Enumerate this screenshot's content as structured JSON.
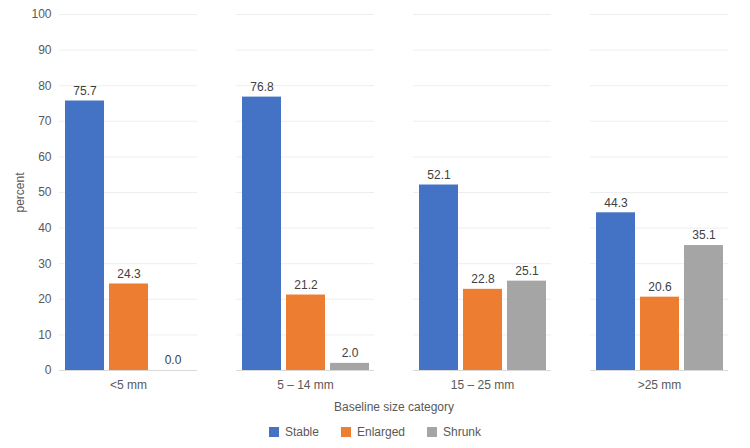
{
  "chart_data": {
    "type": "bar",
    "x_label": "Baseline size category",
    "y_label": "percent",
    "categories": [
      "<5 mm",
      "5 – 14 mm",
      "15 – 25 mm",
      ">25 mm"
    ],
    "series": [
      {
        "name": "Stable",
        "color": "#4472c4",
        "values": [
          75.7,
          76.8,
          52.1,
          44.3
        ],
        "value_labels": [
          "75.7",
          "76.8",
          "52.1",
          "44.3"
        ]
      },
      {
        "name": "Enlarged",
        "color": "#ed7d31",
        "values": [
          24.3,
          21.2,
          22.8,
          20.6
        ],
        "value_labels": [
          "24.3",
          "21.2",
          "22.8",
          "20.6"
        ]
      },
      {
        "name": "Shrunk",
        "color": "#a5a5a5",
        "values": [
          0,
          2,
          25.1,
          35.1
        ],
        "value_labels": [
          "0.0",
          "2.0",
          "25.1",
          "35.1"
        ]
      }
    ],
    "ylim": [
      0,
      100
    ],
    "yticks": [
      0,
      10,
      20,
      30,
      40,
      50,
      60,
      70,
      80,
      90,
      100
    ],
    "grid": true,
    "data_labels": true,
    "legend": "bottom"
  }
}
